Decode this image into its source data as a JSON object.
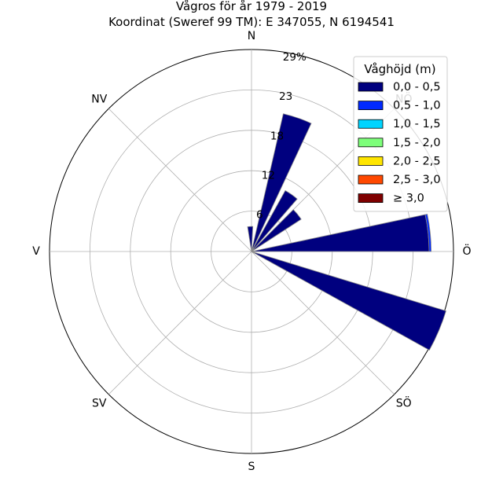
{
  "chart_data": {
    "type": "polar-bar",
    "title": "Vågros för år 1979 - 2019",
    "subtitle": "Koordinat (Sweref 99 TM): E 347055, N 6194541",
    "directions": [
      {
        "label": "N",
        "angle": 0
      },
      {
        "label": "NÖ",
        "angle": 45
      },
      {
        "label": "Ö",
        "angle": 90
      },
      {
        "label": "SÖ",
        "angle": 135
      },
      {
        "label": "S",
        "angle": 180
      },
      {
        "label": "SV",
        "angle": 225
      },
      {
        "label": "V",
        "angle": 270
      },
      {
        "label": "NV",
        "angle": 315
      }
    ],
    "radial_ticks": [
      "6",
      "12",
      "18",
      "23",
      "29%"
    ],
    "radial_tick_values": [
      5.8,
      11.6,
      17.4,
      23.2,
      29
    ],
    "r_max": 29,
    "bin_width_deg": 12,
    "bars": [
      {
        "center_deg": 357,
        "values": [
          3.6,
          0,
          0,
          0,
          0,
          0,
          0
        ]
      },
      {
        "center_deg": 19,
        "values": [
          20.3,
          0,
          0,
          0,
          0,
          0,
          0
        ]
      },
      {
        "center_deg": 35,
        "values": [
          10.0,
          0,
          0,
          0,
          0,
          0,
          0
        ]
      },
      {
        "center_deg": 51,
        "values": [
          8.5,
          0,
          0,
          0,
          0,
          0,
          0
        ]
      },
      {
        "center_deg": 84,
        "values": [
          25.5,
          0.3,
          0,
          0,
          0,
          0,
          0
        ]
      },
      {
        "center_deg": 113,
        "values": [
          29.2,
          0,
          0,
          0,
          0,
          0,
          0
        ]
      }
    ],
    "legend": {
      "title": "Våghöjd (m)",
      "placement": "top-right",
      "entries": [
        {
          "label": "0,0 - 0,5",
          "color": "#00007f"
        },
        {
          "label": "0,5 - 1,0",
          "color": "#0029ff"
        },
        {
          "label": "1,0 - 1,5",
          "color": "#00d4ff"
        },
        {
          "label": "1,5 - 2,0",
          "color": "#7dff7a"
        },
        {
          "label": "2,0 - 2,5",
          "color": "#ffe500"
        },
        {
          "label": "2,5 - 3,0",
          "color": "#ff4800"
        },
        {
          "label": "≥ 3,0",
          "color": "#7f0000"
        }
      ]
    },
    "grid": true
  }
}
